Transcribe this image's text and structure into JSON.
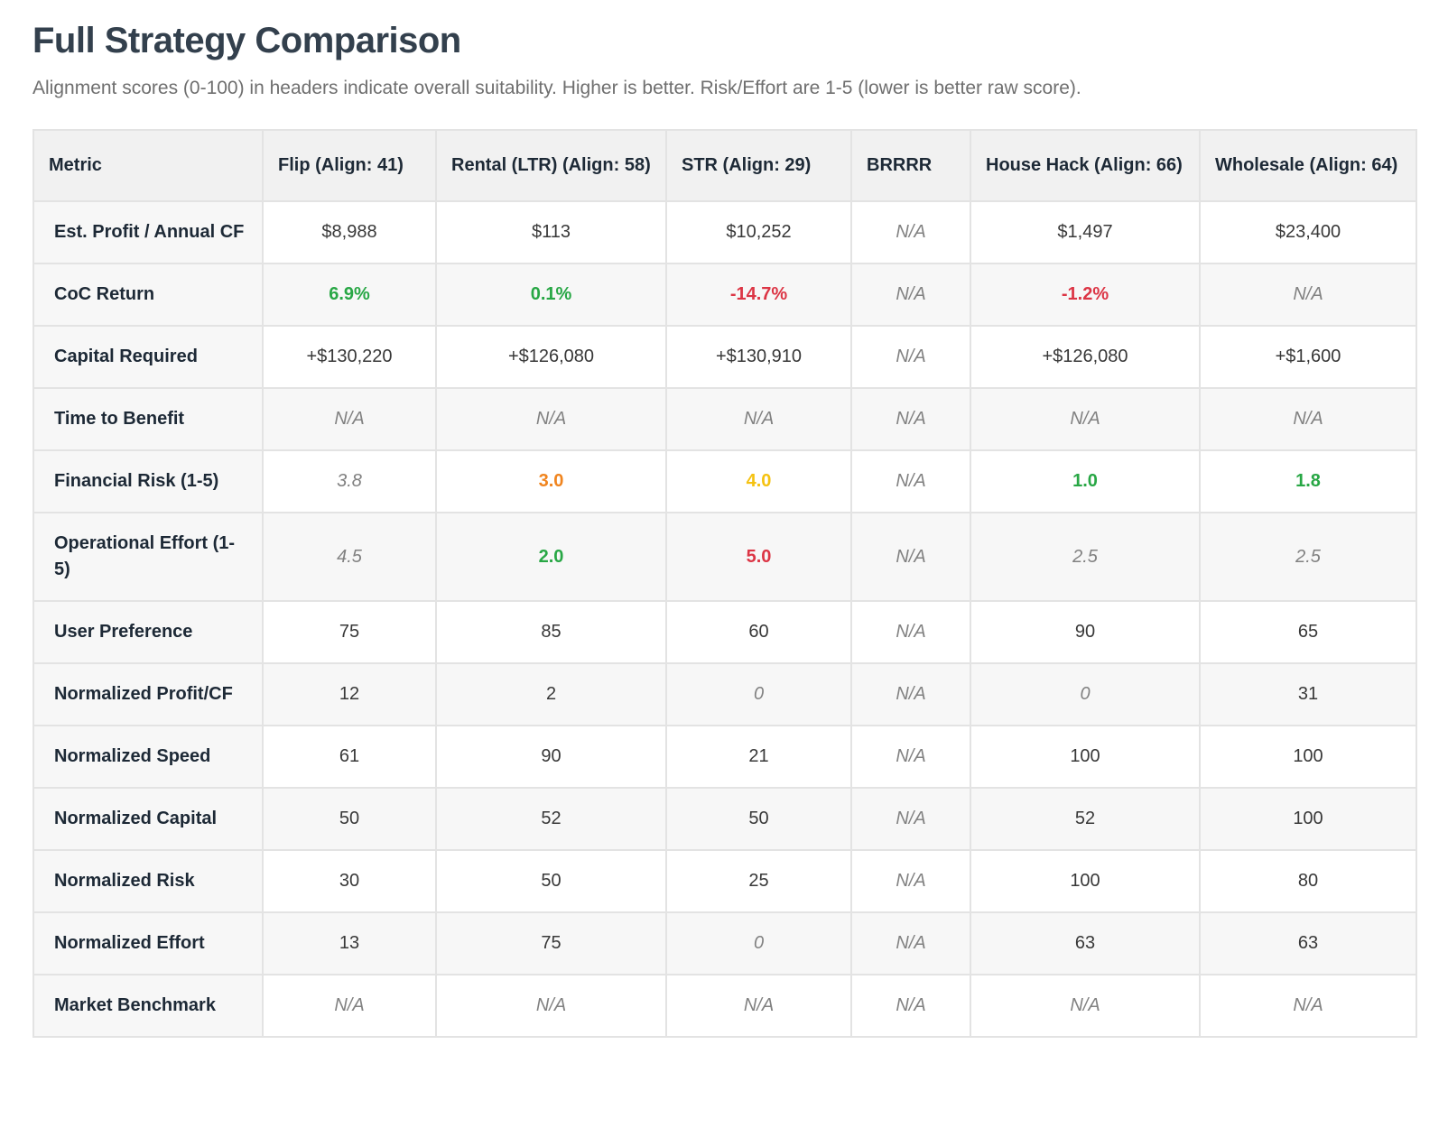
{
  "page": {
    "title": "Full Strategy Comparison",
    "subtitle": "Alignment scores (0-100) in headers indicate overall suitability. Higher is better. Risk/Effort are 1-5 (lower is better raw score)."
  },
  "colors": {
    "positive_green": "#28a745",
    "negative_red": "#dc3545",
    "risk_orange": "#f0841e",
    "risk_yellow": "#f5c211",
    "muted_gray": "#818181",
    "heading_navy": "#1d2936",
    "title_slate": "#33404d",
    "header_bg": "#f1f1f1",
    "stripe_bg": "#f7f7f7",
    "border": "#e3e3e3"
  },
  "table": {
    "columns": [
      "Metric",
      "Flip (Align: 41)",
      "Rental (LTR) (Align: 58)",
      "STR (Align: 29)",
      "BRRRR",
      "House Hack (Align: 66)",
      "Wholesale (Align: 64)"
    ],
    "rows": [
      {
        "metric": "Est. Profit / Annual CF",
        "cells": [
          {
            "text": "$8,988",
            "style": "normal"
          },
          {
            "text": "$113",
            "style": "normal"
          },
          {
            "text": "$10,252",
            "style": "normal"
          },
          {
            "text": "N/A",
            "style": "na"
          },
          {
            "text": "$1,497",
            "style": "normal"
          },
          {
            "text": "$23,400",
            "style": "normal"
          }
        ]
      },
      {
        "metric": "CoC Return",
        "cells": [
          {
            "text": "6.9%",
            "style": "good"
          },
          {
            "text": "0.1%",
            "style": "good"
          },
          {
            "text": "-14.7%",
            "style": "bad"
          },
          {
            "text": "N/A",
            "style": "na"
          },
          {
            "text": "-1.2%",
            "style": "bad"
          },
          {
            "text": "N/A",
            "style": "na"
          }
        ]
      },
      {
        "metric": "Capital Required",
        "cells": [
          {
            "text": "+$130,220",
            "style": "normal"
          },
          {
            "text": "+$126,080",
            "style": "normal"
          },
          {
            "text": "+$130,910",
            "style": "normal"
          },
          {
            "text": "N/A",
            "style": "na"
          },
          {
            "text": "+$126,080",
            "style": "normal"
          },
          {
            "text": "+$1,600",
            "style": "normal"
          }
        ]
      },
      {
        "metric": "Time to Benefit",
        "cells": [
          {
            "text": "N/A",
            "style": "na"
          },
          {
            "text": "N/A",
            "style": "na"
          },
          {
            "text": "N/A",
            "style": "na"
          },
          {
            "text": "N/A",
            "style": "na"
          },
          {
            "text": "N/A",
            "style": "na"
          },
          {
            "text": "N/A",
            "style": "na"
          }
        ]
      },
      {
        "metric": "Financial Risk (1-5)",
        "cells": [
          {
            "text": "3.8",
            "style": "muted"
          },
          {
            "text": "3.0",
            "style": "orange"
          },
          {
            "text": "4.0",
            "style": "yellow"
          },
          {
            "text": "N/A",
            "style": "na"
          },
          {
            "text": "1.0",
            "style": "good"
          },
          {
            "text": "1.8",
            "style": "good"
          }
        ]
      },
      {
        "metric": "Operational Effort (1-5)",
        "cells": [
          {
            "text": "4.5",
            "style": "muted"
          },
          {
            "text": "2.0",
            "style": "good"
          },
          {
            "text": "5.0",
            "style": "bad"
          },
          {
            "text": "N/A",
            "style": "na"
          },
          {
            "text": "2.5",
            "style": "muted"
          },
          {
            "text": "2.5",
            "style": "muted"
          }
        ]
      },
      {
        "metric": "User Preference",
        "cells": [
          {
            "text": "75",
            "style": "normal"
          },
          {
            "text": "85",
            "style": "normal"
          },
          {
            "text": "60",
            "style": "normal"
          },
          {
            "text": "N/A",
            "style": "na"
          },
          {
            "text": "90",
            "style": "normal"
          },
          {
            "text": "65",
            "style": "normal"
          }
        ]
      },
      {
        "metric": "Normalized Profit/CF",
        "cells": [
          {
            "text": "12",
            "style": "normal"
          },
          {
            "text": "2",
            "style": "normal"
          },
          {
            "text": "0",
            "style": "muted"
          },
          {
            "text": "N/A",
            "style": "na"
          },
          {
            "text": "0",
            "style": "muted"
          },
          {
            "text": "31",
            "style": "normal"
          }
        ]
      },
      {
        "metric": "Normalized Speed",
        "cells": [
          {
            "text": "61",
            "style": "normal"
          },
          {
            "text": "90",
            "style": "normal"
          },
          {
            "text": "21",
            "style": "normal"
          },
          {
            "text": "N/A",
            "style": "na"
          },
          {
            "text": "100",
            "style": "normal"
          },
          {
            "text": "100",
            "style": "normal"
          }
        ]
      },
      {
        "metric": "Normalized Capital",
        "cells": [
          {
            "text": "50",
            "style": "normal"
          },
          {
            "text": "52",
            "style": "normal"
          },
          {
            "text": "50",
            "style": "normal"
          },
          {
            "text": "N/A",
            "style": "na"
          },
          {
            "text": "52",
            "style": "normal"
          },
          {
            "text": "100",
            "style": "normal"
          }
        ]
      },
      {
        "metric": "Normalized Risk",
        "cells": [
          {
            "text": "30",
            "style": "normal"
          },
          {
            "text": "50",
            "style": "normal"
          },
          {
            "text": "25",
            "style": "normal"
          },
          {
            "text": "N/A",
            "style": "na"
          },
          {
            "text": "100",
            "style": "normal"
          },
          {
            "text": "80",
            "style": "normal"
          }
        ]
      },
      {
        "metric": "Normalized Effort",
        "cells": [
          {
            "text": "13",
            "style": "normal"
          },
          {
            "text": "75",
            "style": "normal"
          },
          {
            "text": "0",
            "style": "muted"
          },
          {
            "text": "N/A",
            "style": "na"
          },
          {
            "text": "63",
            "style": "normal"
          },
          {
            "text": "63",
            "style": "normal"
          }
        ]
      },
      {
        "metric": "Market Benchmark",
        "cells": [
          {
            "text": "N/A",
            "style": "na"
          },
          {
            "text": "N/A",
            "style": "na"
          },
          {
            "text": "N/A",
            "style": "na"
          },
          {
            "text": "N/A",
            "style": "na"
          },
          {
            "text": "N/A",
            "style": "na"
          },
          {
            "text": "N/A",
            "style": "na"
          }
        ]
      }
    ]
  }
}
